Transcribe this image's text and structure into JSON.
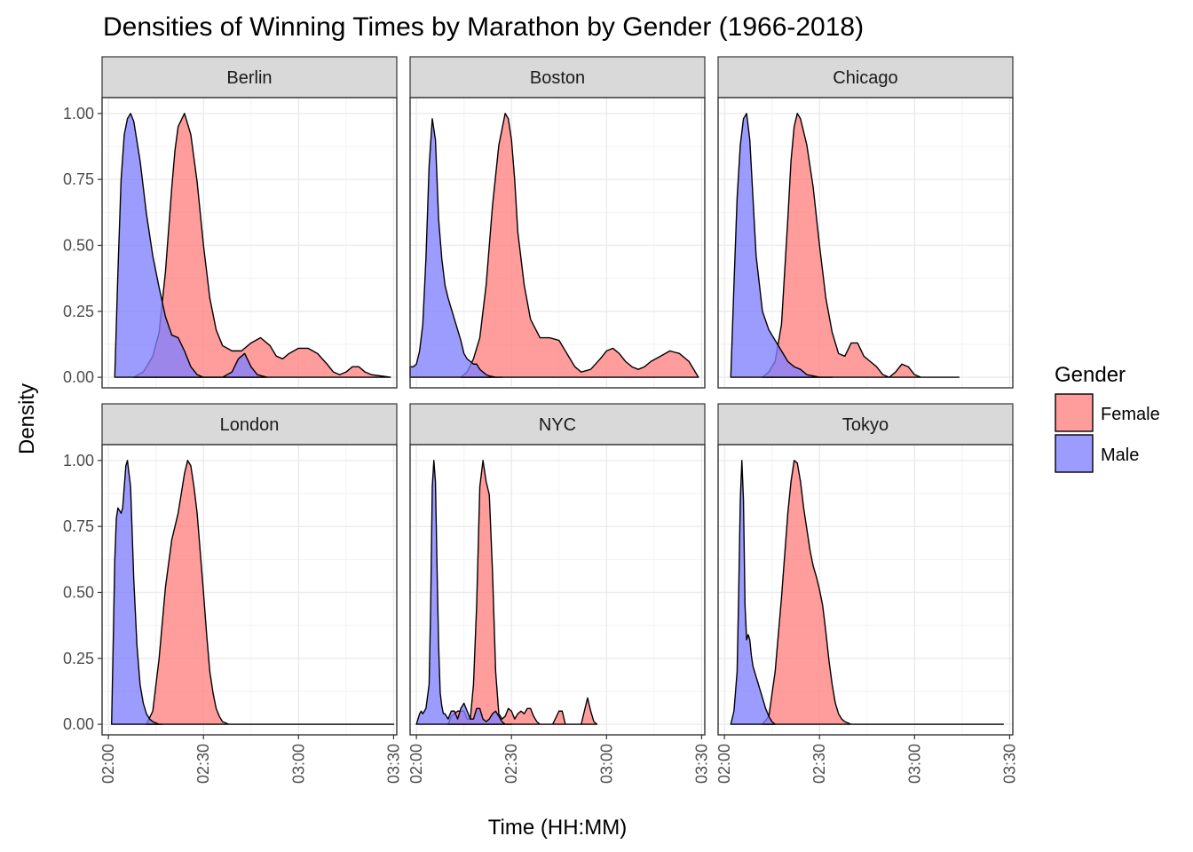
{
  "chart_data": {
    "type": "area",
    "title": "Densities of Winning Times by Marathon by Gender (1966-2018)",
    "xlabel": "Time (HH:MM)",
    "ylabel": "Density",
    "x_unit": "minutes",
    "xlim": [
      118,
      211
    ],
    "ylim": [
      -0.04,
      1.06
    ],
    "x_ticks": [
      {
        "value": 120,
        "label": "02:00"
      },
      {
        "value": 150,
        "label": "02:30"
      },
      {
        "value": 180,
        "label": "03:00"
      },
      {
        "value": 210,
        "label": "03:30"
      }
    ],
    "y_ticks": [
      {
        "value": 0,
        "label": "0.00"
      },
      {
        "value": 0.25,
        "label": "0.25"
      },
      {
        "value": 0.5,
        "label": "0.50"
      },
      {
        "value": 0.75,
        "label": "0.75"
      },
      {
        "value": 1,
        "label": "1.00"
      }
    ],
    "legend": {
      "title": "Gender",
      "position": "right",
      "entries": [
        {
          "name": "Female",
          "fill": "#ff8080",
          "stroke": "#000000"
        },
        {
          "name": "Male",
          "fill": "#8080ff",
          "stroke": "#000000"
        }
      ]
    },
    "facets": [
      {
        "name": "Berlin",
        "series": [
          {
            "name": "Female",
            "x": [
              128,
              131,
              134,
              136,
              138,
              140,
              141,
              142,
              144,
              146,
              148,
              150,
              152,
              154,
              156,
              159,
              162,
              165,
              168,
              171,
              173,
              175,
              177,
              180,
              183,
              186,
              189,
              191,
              193,
              195,
              197,
              199,
              201,
              203,
              206,
              209
            ],
            "y": [
              0,
              0.02,
              0.08,
              0.17,
              0.4,
              0.72,
              0.86,
              0.95,
              1.0,
              0.92,
              0.74,
              0.5,
              0.3,
              0.18,
              0.12,
              0.1,
              0.1,
              0.13,
              0.15,
              0.12,
              0.08,
              0.07,
              0.09,
              0.11,
              0.11,
              0.09,
              0.05,
              0.02,
              0.01,
              0.02,
              0.04,
              0.04,
              0.02,
              0.01,
              0.005,
              0
            ]
          },
          {
            "name": "Male",
            "x": [
              122,
              123,
              124,
              125,
              126,
              127,
              128,
              130,
              132,
              134,
              136,
              138,
              140,
              142,
              144,
              146,
              148,
              150,
              153,
              156,
              159,
              161,
              163,
              165,
              167,
              170
            ],
            "y": [
              0,
              0.4,
              0.75,
              0.92,
              0.98,
              1.0,
              0.97,
              0.82,
              0.62,
              0.46,
              0.34,
              0.23,
              0.16,
              0.15,
              0.1,
              0.04,
              0.01,
              0,
              0,
              0,
              0.02,
              0.07,
              0.09,
              0.04,
              0.01,
              0
            ]
          }
        ]
      },
      {
        "name": "Boston",
        "series": [
          {
            "name": "Female",
            "x": [
              134,
              136,
              138,
              140,
              142,
              144,
              146,
              148,
              149,
              150,
              151,
              152,
              154,
              156,
              159,
              162,
              165,
              168,
              170,
              172,
              175,
              178,
              180,
              182,
              184,
              186,
              188,
              190,
              192,
              194,
              197,
              200,
              203,
              206,
              209
            ],
            "y": [
              0,
              0.02,
              0.07,
              0.15,
              0.35,
              0.65,
              0.88,
              1.0,
              0.98,
              0.9,
              0.75,
              0.55,
              0.35,
              0.22,
              0.15,
              0.15,
              0.14,
              0.08,
              0.04,
              0.02,
              0.03,
              0.07,
              0.1,
              0.11,
              0.09,
              0.06,
              0.04,
              0.03,
              0.04,
              0.06,
              0.08,
              0.1,
              0.09,
              0.06,
              0
            ]
          },
          {
            "name": "Male",
            "x": [
              118,
              119,
              120,
              121,
              122,
              123,
              124,
              125,
              126,
              127,
              128,
              129,
              130,
              131,
              132,
              133,
              134,
              135,
              136,
              137,
              138,
              139,
              140,
              141,
              142,
              143,
              145,
              147
            ],
            "y": [
              0.04,
              0.04,
              0.05,
              0.1,
              0.2,
              0.45,
              0.8,
              0.98,
              0.9,
              0.6,
              0.45,
              0.35,
              0.3,
              0.26,
              0.22,
              0.18,
              0.14,
              0.09,
              0.07,
              0.06,
              0.05,
              0.05,
              0.03,
              0.02,
              0.01,
              0.005,
              0,
              0
            ]
          }
        ]
      },
      {
        "name": "Chicago",
        "series": [
          {
            "name": "Female",
            "x": [
              132,
              134,
              136,
              138,
              139,
              140,
              141,
              142,
              143,
              144,
              146,
              148,
              150,
              152,
              154,
              156,
              158,
              160,
              162,
              164,
              166,
              168,
              170,
              172,
              174,
              176,
              178,
              180,
              182,
              184,
              186,
              188,
              190,
              192,
              194
            ],
            "y": [
              0,
              0.02,
              0.06,
              0.2,
              0.4,
              0.6,
              0.82,
              0.95,
              1.0,
              0.98,
              0.88,
              0.72,
              0.5,
              0.3,
              0.17,
              0.09,
              0.08,
              0.13,
              0.13,
              0.08,
              0.06,
              0.04,
              0.01,
              0,
              0.02,
              0.05,
              0.04,
              0.01,
              0,
              0,
              0,
              0,
              0,
              0,
              0
            ]
          },
          {
            "name": "Male",
            "x": [
              122,
              123,
              124,
              125,
              126,
              127,
              128,
              129,
              130,
              132,
              134,
              136,
              138,
              140,
              142,
              144,
              146,
              148,
              150,
              152,
              154
            ],
            "y": [
              0,
              0.35,
              0.68,
              0.88,
              0.98,
              1.0,
              0.9,
              0.68,
              0.46,
              0.25,
              0.18,
              0.14,
              0.1,
              0.06,
              0.04,
              0.03,
              0.01,
              0.005,
              0,
              0,
              0
            ]
          }
        ]
      },
      {
        "name": "London",
        "series": [
          {
            "name": "Female",
            "x": [
              132,
              134,
              136,
              138,
              140,
              142,
              144,
              145,
              146,
              147,
              148,
              149,
              150,
              151,
              152,
              153,
              154,
              155,
              156,
              157,
              158,
              159,
              160,
              162,
              164,
              166,
              168,
              170,
              172,
              174,
              176,
              178,
              180,
              182,
              184,
              186,
              188,
              190,
              192,
              194,
              196,
              198,
              200,
              202,
              204,
              206,
              208,
              210
            ],
            "y": [
              0,
              0.05,
              0.25,
              0.52,
              0.7,
              0.8,
              0.95,
              1.0,
              0.98,
              0.9,
              0.8,
              0.65,
              0.5,
              0.34,
              0.2,
              0.12,
              0.06,
              0.03,
              0.01,
              0.005,
              0,
              0,
              0,
              0,
              0,
              0,
              0,
              0,
              0,
              0,
              0,
              0,
              0,
              0,
              0,
              0,
              0,
              0,
              0,
              0,
              0,
              0,
              0,
              0,
              0,
              0,
              0,
              0
            ]
          },
          {
            "name": "Male",
            "x": [
              121,
              121.5,
              122,
              122.5,
              123,
              123.5,
              124,
              124.5,
              125,
              125.5,
              126,
              127,
              128,
              129,
              130,
              131,
              132,
              133,
              134,
              135,
              136,
              137
            ],
            "y": [
              0,
              0.3,
              0.62,
              0.78,
              0.82,
              0.81,
              0.8,
              0.82,
              0.9,
              0.98,
              1.0,
              0.9,
              0.55,
              0.3,
              0.15,
              0.08,
              0.04,
              0.02,
              0.01,
              0.005,
              0,
              0
            ]
          }
        ]
      },
      {
        "name": "NYC",
        "series": [
          {
            "name": "Female",
            "x": [
              130,
              131,
              132,
              133,
              134,
              135,
              136,
              137,
              138,
              139,
              140,
              141,
              142,
              143,
              144,
              145,
              146,
              147,
              148,
              149,
              150,
              151,
              152,
              153,
              154,
              155,
              156,
              157,
              158,
              159,
              160,
              161,
              163,
              165,
              166,
              167,
              168,
              169,
              170,
              171,
              172,
              173,
              174,
              175,
              176,
              177
            ],
            "y": [
              0,
              0.03,
              0.04,
              0.05,
              0.05,
              0.05,
              0.02,
              0.02,
              0.15,
              0.45,
              0.9,
              1.0,
              0.92,
              0.87,
              0.58,
              0.2,
              0.04,
              0.02,
              0.03,
              0.06,
              0.05,
              0.02,
              0.04,
              0.05,
              0.04,
              0.06,
              0.06,
              0.03,
              0.01,
              0,
              0,
              0,
              0,
              0.05,
              0.05,
              0,
              0,
              0,
              0,
              0,
              0,
              0.05,
              0.1,
              0.05,
              0.01,
              0
            ]
          },
          {
            "name": "Male",
            "x": [
              120,
              121,
              121.5,
              122,
              123,
              124,
              124.5,
              125,
              125.5,
              126,
              126.5,
              127,
              127.5,
              128,
              128.5,
              129,
              130,
              131,
              132,
              133,
              134,
              135,
              136,
              137,
              138,
              139,
              140,
              141,
              142,
              143,
              144,
              145,
              146,
              147,
              148,
              149,
              150
            ],
            "y": [
              0,
              0.04,
              0.05,
              0.04,
              0.06,
              0.15,
              0.45,
              0.9,
              1.0,
              0.92,
              0.6,
              0.3,
              0.12,
              0.07,
              0.04,
              0.04,
              0.02,
              0.05,
              0.05,
              0.02,
              0.06,
              0.08,
              0.05,
              0.02,
              0.02,
              0.06,
              0.06,
              0.02,
              0.01,
              0.02,
              0.04,
              0.05,
              0.03,
              0.01,
              0,
              0,
              0
            ]
          }
        ]
      },
      {
        "name": "Tokyo",
        "series": [
          {
            "name": "Female",
            "x": [
              132,
              134,
              136,
              138,
              140,
              141,
              142,
              143,
              144,
              145,
              146,
              147,
              148,
              149,
              150,
              151,
              152,
              153,
              154,
              155,
              156,
              157,
              158,
              160,
              162,
              164,
              166,
              168,
              170,
              172,
              174,
              176,
              178,
              180,
              182,
              184,
              186,
              188,
              190,
              192,
              194,
              196,
              198,
              200,
              202,
              204,
              206,
              208
            ],
            "y": [
              0,
              0.03,
              0.2,
              0.48,
              0.8,
              0.92,
              1.0,
              0.99,
              0.92,
              0.82,
              0.74,
              0.66,
              0.6,
              0.56,
              0.51,
              0.45,
              0.35,
              0.24,
              0.15,
              0.08,
              0.04,
              0.02,
              0.01,
              0,
              0,
              0,
              0,
              0,
              0,
              0,
              0,
              0,
              0,
              0,
              0,
              0,
              0,
              0,
              0,
              0,
              0,
              0,
              0,
              0,
              0,
              0,
              0,
              0
            ]
          },
          {
            "name": "Male",
            "x": [
              122,
              123,
              124,
              124.5,
              125,
              125.5,
              126,
              126.5,
              127,
              127.5,
              128,
              128.5,
              129,
              130,
              131,
              132,
              133,
              134,
              135,
              136
            ],
            "y": [
              0,
              0.05,
              0.2,
              0.5,
              0.85,
              1.0,
              0.85,
              0.45,
              0.32,
              0.34,
              0.32,
              0.26,
              0.22,
              0.18,
              0.14,
              0.1,
              0.06,
              0.03,
              0.01,
              0
            ]
          }
        ]
      }
    ]
  }
}
